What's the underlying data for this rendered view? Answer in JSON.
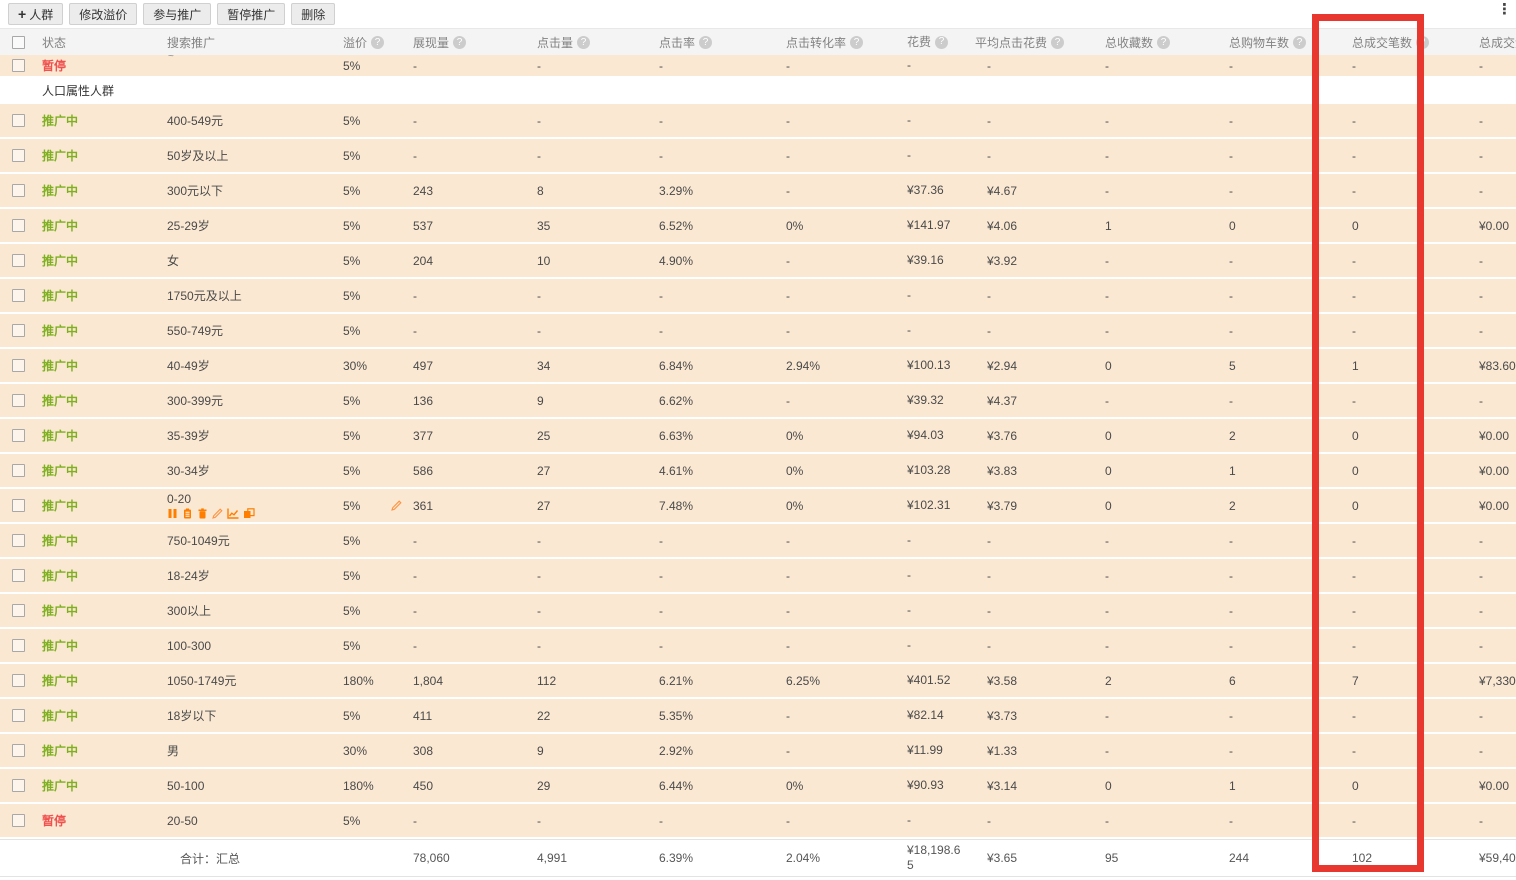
{
  "page": {
    "more_options": "⋮"
  },
  "toolbar": {
    "plus_symbol": "+",
    "buttons": [
      {
        "label": "人群",
        "icon": "plus"
      },
      {
        "label": "修改溢价"
      },
      {
        "label": "参与推广"
      },
      {
        "label": "暂停推广"
      },
      {
        "label": "删除"
      }
    ]
  },
  "table": {
    "columns": [
      {
        "label": "状态",
        "help": false
      },
      {
        "label": "搜索推广",
        "help": false
      },
      {
        "label": "溢价",
        "help": true
      },
      {
        "label": "展现量",
        "help": true
      },
      {
        "label": "点击量",
        "help": true
      },
      {
        "label": "点击率",
        "help": true
      },
      {
        "label": "点击转化率",
        "help": true
      },
      {
        "label": "花费",
        "help": true
      },
      {
        "label": "平均点击花费",
        "help": true
      },
      {
        "label": "总收藏数",
        "help": true
      },
      {
        "label": "总购物车数",
        "help": true
      },
      {
        "label": "总成交笔数",
        "help": true
      },
      {
        "label": "总成交金额",
        "help": false
      }
    ],
    "cell_names": [
      "premium",
      "impressions",
      "clicks",
      "ctr",
      "cvr",
      "cost",
      "avg-click-cost",
      "favorites",
      "carts",
      "orders",
      "amount"
    ],
    "status_labels": {
      "active": "推广中",
      "paused": "暂停"
    },
    "section_label": "人口属性人群",
    "row_action_icons": [
      "pause-icon",
      "clipboard-icon",
      "delete-icon",
      "edit-icon",
      "chart-icon",
      "copy-icon"
    ],
    "rows": [
      {
        "type": "data",
        "state": "paused",
        "name": "~",
        "partial": true,
        "values": [
          "5%",
          "-",
          "-",
          "-",
          "-",
          "-",
          "-",
          "-",
          "-",
          "-",
          "-"
        ]
      },
      {
        "type": "section",
        "label": "人口属性人群"
      },
      {
        "type": "data",
        "state": "active",
        "name": "400-549元",
        "values": [
          "5%",
          "-",
          "-",
          "-",
          "-",
          "-",
          "-",
          "-",
          "-",
          "-",
          "-"
        ]
      },
      {
        "type": "data",
        "state": "active",
        "name": "50岁及以上",
        "values": [
          "5%",
          "-",
          "-",
          "-",
          "-",
          "-",
          "-",
          "-",
          "-",
          "-",
          "-"
        ]
      },
      {
        "type": "data",
        "state": "active",
        "name": "300元以下",
        "values": [
          "5%",
          "243",
          "8",
          "3.29%",
          "-",
          "¥37.36",
          "¥4.67",
          "-",
          "-",
          "-",
          "-"
        ]
      },
      {
        "type": "data",
        "state": "active",
        "name": "25-29岁",
        "values": [
          "5%",
          "537",
          "35",
          "6.52%",
          "0%",
          "¥141.97",
          "¥4.06",
          "1",
          "0",
          "0",
          "¥0.00"
        ]
      },
      {
        "type": "data",
        "state": "active",
        "name": "女",
        "values": [
          "5%",
          "204",
          "10",
          "4.90%",
          "-",
          "¥39.16",
          "¥3.92",
          "-",
          "-",
          "-",
          "-"
        ]
      },
      {
        "type": "data",
        "state": "active",
        "name": "1750元及以上",
        "values": [
          "5%",
          "-",
          "-",
          "-",
          "-",
          "-",
          "-",
          "-",
          "-",
          "-",
          "-"
        ]
      },
      {
        "type": "data",
        "state": "active",
        "name": "550-749元",
        "values": [
          "5%",
          "-",
          "-",
          "-",
          "-",
          "-",
          "-",
          "-",
          "-",
          "-",
          "-"
        ]
      },
      {
        "type": "data",
        "state": "active",
        "name": "40-49岁",
        "values": [
          "30%",
          "497",
          "34",
          "6.84%",
          "2.94%",
          "¥100.13",
          "¥2.94",
          "0",
          "5",
          "1",
          "¥83.60"
        ]
      },
      {
        "type": "data",
        "state": "active",
        "name": "300-399元",
        "values": [
          "5%",
          "136",
          "9",
          "6.62%",
          "-",
          "¥39.32",
          "¥4.37",
          "-",
          "-",
          "-",
          "-"
        ]
      },
      {
        "type": "data",
        "state": "active",
        "name": "35-39岁",
        "values": [
          "5%",
          "377",
          "25",
          "6.63%",
          "0%",
          "¥94.03",
          "¥3.76",
          "0",
          "2",
          "0",
          "¥0.00"
        ]
      },
      {
        "type": "data",
        "state": "active",
        "name": "30-34岁",
        "values": [
          "5%",
          "586",
          "27",
          "4.61%",
          "0%",
          "¥103.28",
          "¥3.83",
          "0",
          "1",
          "0",
          "¥0.00"
        ]
      },
      {
        "type": "data",
        "state": "active",
        "name": "0-20",
        "actions": true,
        "premium_edit": true,
        "values": [
          "5%",
          "361",
          "27",
          "7.48%",
          "0%",
          "¥102.31",
          "¥3.79",
          "0",
          "2",
          "0",
          "¥0.00"
        ]
      },
      {
        "type": "data",
        "state": "active",
        "name": "750-1049元",
        "values": [
          "5%",
          "-",
          "-",
          "-",
          "-",
          "-",
          "-",
          "-",
          "-",
          "-",
          "-"
        ]
      },
      {
        "type": "data",
        "state": "active",
        "name": "18-24岁",
        "values": [
          "5%",
          "-",
          "-",
          "-",
          "-",
          "-",
          "-",
          "-",
          "-",
          "-",
          "-"
        ]
      },
      {
        "type": "data",
        "state": "active",
        "name": "300以上",
        "values": [
          "5%",
          "-",
          "-",
          "-",
          "-",
          "-",
          "-",
          "-",
          "-",
          "-",
          "-"
        ]
      },
      {
        "type": "data",
        "state": "active",
        "name": "100-300",
        "values": [
          "5%",
          "-",
          "-",
          "-",
          "-",
          "-",
          "-",
          "-",
          "-",
          "-",
          "-"
        ]
      },
      {
        "type": "data",
        "state": "active",
        "name": "1050-1749元",
        "values": [
          "180%",
          "1,804",
          "112",
          "6.21%",
          "6.25%",
          "¥401.52",
          "¥3.58",
          "2",
          "6",
          "7",
          "¥7,330"
        ]
      },
      {
        "type": "data",
        "state": "active",
        "name": "18岁以下",
        "values": [
          "5%",
          "411",
          "22",
          "5.35%",
          "-",
          "¥82.14",
          "¥3.73",
          "-",
          "-",
          "-",
          "-"
        ]
      },
      {
        "type": "data",
        "state": "active",
        "name": "男",
        "values": [
          "30%",
          "308",
          "9",
          "2.92%",
          "-",
          "¥11.99",
          "¥1.33",
          "-",
          "-",
          "-",
          "-"
        ]
      },
      {
        "type": "data",
        "state": "active",
        "name": "50-100",
        "values": [
          "180%",
          "450",
          "29",
          "6.44%",
          "0%",
          "¥90.93",
          "¥3.14",
          "0",
          "1",
          "0",
          "¥0.00"
        ]
      },
      {
        "type": "data",
        "state": "paused",
        "name": "20-50",
        "values": [
          "5%",
          "-",
          "-",
          "-",
          "-",
          "-",
          "-",
          "-",
          "-",
          "-",
          "-"
        ]
      }
    ],
    "footer": {
      "label": "合计：汇总",
      "values": [
        "",
        "78,060",
        "4,991",
        "6.39%",
        "2.04%",
        "¥18,198.65",
        "¥3.65",
        "95",
        "244",
        "102",
        "¥59,40"
      ]
    }
  },
  "annotation": {
    "highlighted_column": "总成交笔数",
    "color": "#e8372e"
  }
}
